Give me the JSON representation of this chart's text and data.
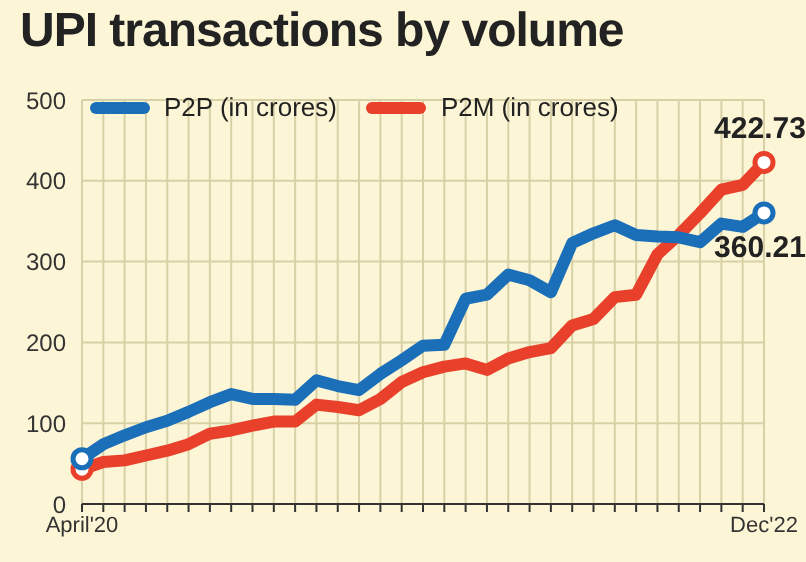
{
  "chart_data": {
    "type": "line",
    "title": "UPI transactions by volume",
    "categories": [
      "April'20",
      null,
      null,
      null,
      null,
      null,
      null,
      null,
      null,
      null,
      null,
      null,
      null,
      null,
      null,
      null,
      null,
      null,
      null,
      null,
      null,
      null,
      null,
      null,
      null,
      null,
      null,
      null,
      null,
      null,
      null,
      null,
      "Dec'22"
    ],
    "series": [
      {
        "name": "P2P (in crores)",
        "color": "#1a6fb8",
        "values": [
          56,
          74,
          85,
          95,
          103,
          114,
          126,
          136,
          130,
          130,
          129,
          153,
          146,
          141,
          161,
          178,
          196,
          197,
          254,
          259,
          284,
          277,
          262,
          323,
          335,
          345,
          333,
          331,
          330,
          324,
          347,
          343,
          360.21
        ],
        "value_labels": [
          null,
          null,
          null,
          null,
          null,
          null,
          null,
          null,
          null,
          null,
          null,
          null,
          null,
          null,
          null,
          null,
          null,
          null,
          null,
          null,
          null,
          null,
          null,
          null,
          null,
          null,
          null,
          null,
          null,
          null,
          null,
          null,
          "360.21"
        ]
      },
      {
        "name": "P2M (in crores)",
        "color": "#e8402a",
        "values": [
          43,
          52,
          54,
          60,
          66,
          74,
          87,
          91,
          97,
          102,
          102,
          123,
          120,
          116,
          130,
          151,
          163,
          170,
          174,
          166,
          180,
          188,
          193,
          221,
          229,
          256,
          259,
          309,
          333,
          360,
          389,
          395,
          422.73
        ],
        "value_labels": [
          null,
          null,
          null,
          null,
          null,
          null,
          null,
          null,
          null,
          null,
          null,
          null,
          null,
          null,
          null,
          null,
          null,
          null,
          null,
          null,
          null,
          null,
          null,
          null,
          null,
          null,
          null,
          null,
          null,
          null,
          null,
          null,
          "422.73"
        ]
      }
    ],
    "ylim": [
      0,
      500
    ],
    "yticks": [
      0,
      100,
      200,
      300,
      400,
      500
    ],
    "grid": true,
    "legend": "top left",
    "line_style": "solid"
  }
}
